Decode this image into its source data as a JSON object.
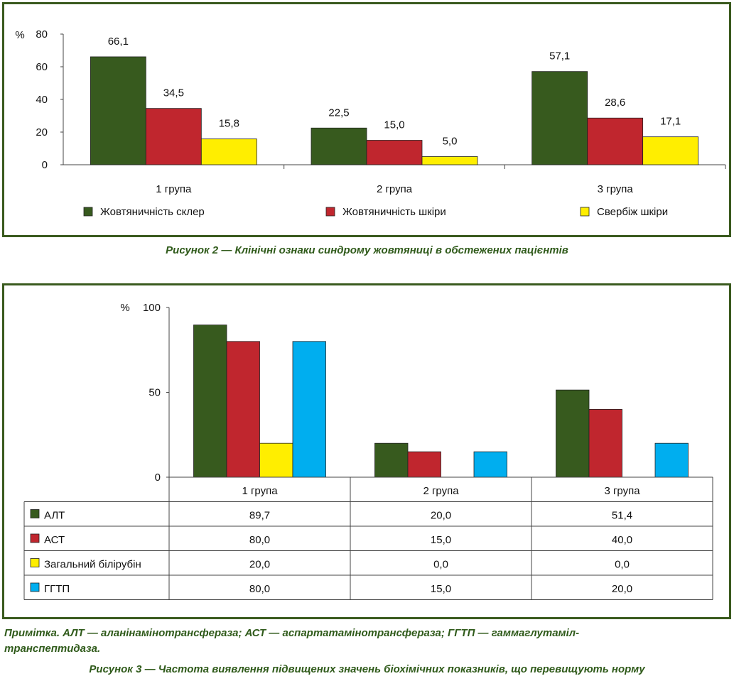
{
  "figure2": {
    "caption": "Рисунок 2 — Клінічні ознаки синдрому жовтяниці в обстежених пацієнтів",
    "unit": "%",
    "colors": {
      "sclera": "#375a1e",
      "skin": "#c0262e",
      "itch": "#ffee00"
    }
  },
  "figure3": {
    "caption": "Рисунок 3 — Частота виявлення підвищених значень біохімічних показників, що перевищують норму",
    "note_line1": "Примітка. АЛТ — аланінамінотрансфераза; АСТ — аспартатамінотрансфераза; ГГТП — гаммаглутаміл-",
    "note_line2": "транспептидаза.",
    "unit": "%",
    "colors": {
      "alt": "#375a1e",
      "ast": "#c0262e",
      "bili": "#ffee00",
      "ggtp": "#00aeef"
    }
  },
  "chart_data": [
    {
      "type": "bar",
      "categories": [
        "1 група",
        "2 група",
        "3 група"
      ],
      "series": [
        {
          "name": "Жовтяничність склер",
          "values": [
            66.1,
            22.5,
            57.1
          ],
          "labels": [
            "66,1",
            "22,5",
            "57,1"
          ],
          "color": "#375a1e"
        },
        {
          "name": "Жовтяничність шкіри",
          "values": [
            34.5,
            15.0,
            28.6
          ],
          "labels": [
            "34,5",
            "15,0",
            "28,6"
          ],
          "color": "#c0262e"
        },
        {
          "name": "Свербіж шкіри",
          "values": [
            15.8,
            5.0,
            17.1
          ],
          "labels": [
            "15,8",
            "5,0",
            "17,1"
          ],
          "color": "#ffee00"
        }
      ],
      "ylim": [
        0,
        80
      ],
      "yticks": [
        "0",
        "20",
        "40",
        "60",
        "80"
      ],
      "ylabel": "%",
      "grid": false,
      "legend": "bottom"
    },
    {
      "type": "bar",
      "categories": [
        "1 група",
        "2 група",
        "3 група"
      ],
      "series": [
        {
          "name": "АЛТ",
          "values": [
            89.7,
            20.0,
            51.4
          ],
          "labels": [
            "89,7",
            "20,0",
            "51,4"
          ],
          "color": "#375a1e"
        },
        {
          "name": "АСТ",
          "values": [
            80.0,
            15.0,
            40.0
          ],
          "labels": [
            "80,0",
            "15,0",
            "40,0"
          ],
          "color": "#c0262e"
        },
        {
          "name": "Загальний білірубін",
          "values": [
            20.0,
            0.0,
            0.0
          ],
          "labels": [
            "20,0",
            "0,0",
            "0,0"
          ],
          "color": "#ffee00"
        },
        {
          "name": "ГГТП",
          "values": [
            80.0,
            15.0,
            20.0
          ],
          "labels": [
            "80,0",
            "15,0",
            "20,0"
          ],
          "color": "#00aeef"
        }
      ],
      "ylim": [
        0,
        100
      ],
      "yticks": [
        "0",
        "50",
        "100"
      ],
      "ylabel": "%",
      "grid": false,
      "legend": "data table below"
    }
  ]
}
